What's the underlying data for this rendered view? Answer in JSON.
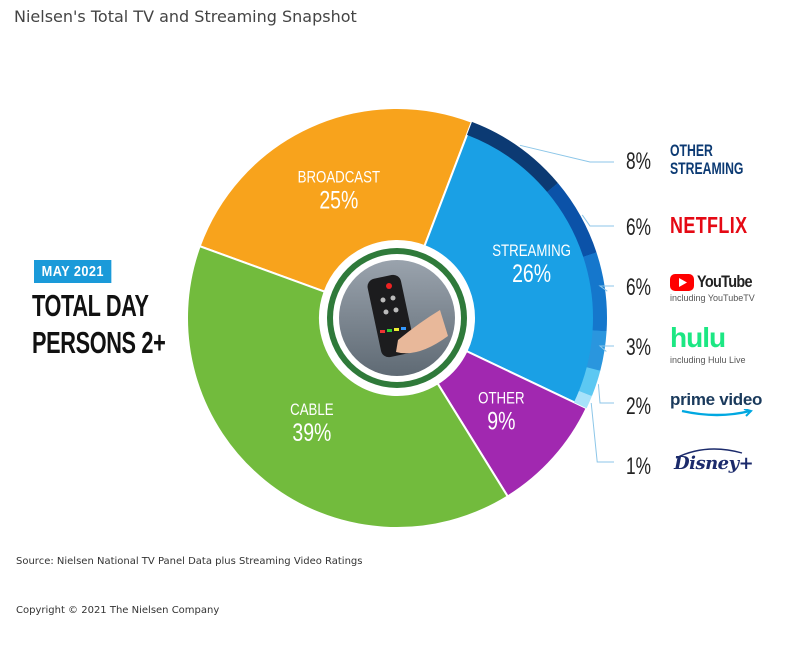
{
  "title": "Nielsen's Total TV and Streaming Snapshot",
  "badge": "MAY 2021",
  "heading_line1": "TOTAL DAY",
  "heading_line2": "PERSONS 2+",
  "source": "Source: Nielsen National TV Panel Data plus Streaming Video Ratings",
  "copyright": "Copyright © 2021 The Nielsen Company",
  "colors": {
    "broadcast": "#f8a31c",
    "cable": "#72bb3d",
    "streaming": "#1aa0e5",
    "other": "#a128b0",
    "netflix_red": "#e50914",
    "youtube_red": "#ff0000",
    "hulu_green": "#1ce783",
    "prime_blue": "#00a8e1",
    "disney_navy": "#1b2a6b"
  },
  "chart_data": {
    "type": "pie",
    "title": "Nielsen's Total TV and Streaming Snapshot",
    "slices": [
      {
        "name": "BROADCAST",
        "value": 25,
        "label": "25%"
      },
      {
        "name": "STREAMING",
        "value": 26,
        "label": "26%"
      },
      {
        "name": "OTHER",
        "value": 9,
        "label": "9%"
      },
      {
        "name": "CABLE",
        "value": 39,
        "label": "39%"
      }
    ],
    "streaming_breakdown": [
      {
        "name": "OTHER STREAMING",
        "value": 8,
        "label": "8%",
        "color": "#0c3a73"
      },
      {
        "name": "NETFLIX",
        "value": 6,
        "label": "6%",
        "color": "#0b52a8"
      },
      {
        "name": "YouTube",
        "sub": "including YouTubeTV",
        "value": 6,
        "label": "6%",
        "color": "#1577cc"
      },
      {
        "name": "hulu",
        "sub": "including Hulu Live",
        "value": 3,
        "label": "3%",
        "color": "#2a96de"
      },
      {
        "name": "prime video",
        "value": 2,
        "label": "2%",
        "color": "#5cc8f2"
      },
      {
        "name": "Disney+",
        "value": 1,
        "label": "1%",
        "color": "#a7e2fa"
      }
    ]
  }
}
